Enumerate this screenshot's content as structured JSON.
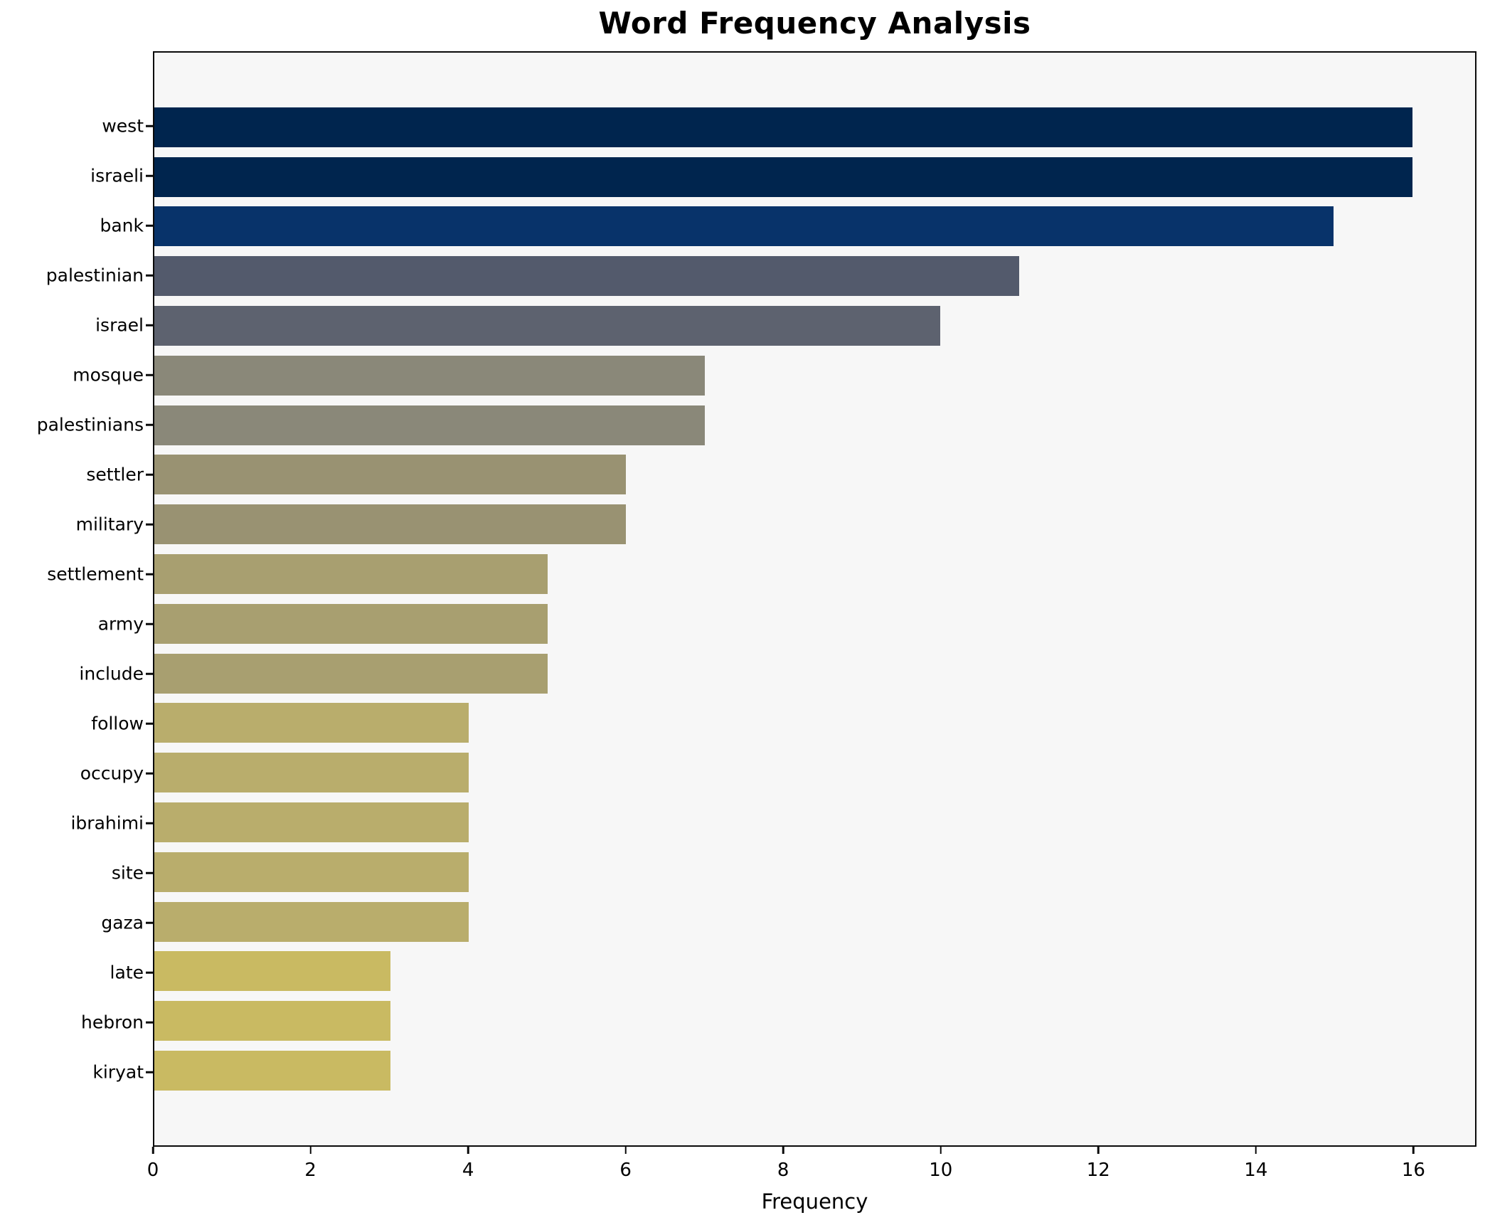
{
  "title": "Word Frequency Analysis",
  "chart_data": {
    "type": "bar",
    "orientation": "horizontal",
    "title": "Word Frequency Analysis",
    "xlabel": "Frequency",
    "ylabel": "",
    "categories": [
      "west",
      "israeli",
      "bank",
      "palestinian",
      "israel",
      "mosque",
      "palestinians",
      "settler",
      "military",
      "settlement",
      "army",
      "include",
      "follow",
      "occupy",
      "ibrahimi",
      "site",
      "gaza",
      "late",
      "hebron",
      "kiryat"
    ],
    "values": [
      16,
      16,
      15,
      11,
      10,
      7,
      7,
      6,
      6,
      5,
      5,
      5,
      4,
      4,
      4,
      4,
      4,
      3,
      3,
      3
    ],
    "bar_colors": [
      "#00254e",
      "#00254e",
      "#08336a",
      "#535a6c",
      "#5d626f",
      "#8a8879",
      "#8a8879",
      "#999272",
      "#999272",
      "#a89f70",
      "#a89f70",
      "#a89f70",
      "#b9ad6c",
      "#b9ad6c",
      "#b9ad6c",
      "#b9ad6c",
      "#b9ad6c",
      "#c9ba62",
      "#c9ba62",
      "#c9ba62"
    ],
    "xlim": [
      0,
      16.8
    ],
    "xticks": [
      0,
      2,
      4,
      6,
      8,
      10,
      12,
      14,
      16
    ],
    "grid": false,
    "legend_position": "none",
    "plot_bg": "#f7f7f7",
    "fig_bg": "#ffffff",
    "spine_color": "#0a0a0a",
    "text_color": "#000000"
  }
}
